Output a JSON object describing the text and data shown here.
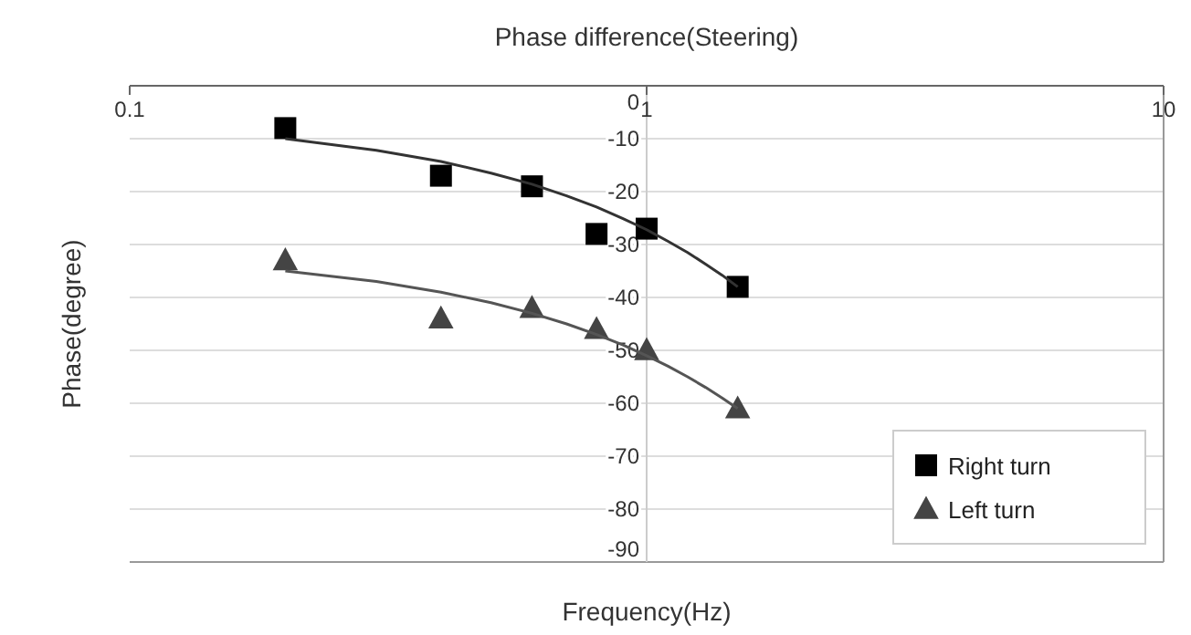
{
  "chart_data": {
    "type": "scatter",
    "title": "Phase difference(Steering)",
    "xlabel": "Frequency(Hz)",
    "ylabel": "Phase(degree)",
    "log": "x",
    "xlim": [
      0.1,
      10
    ],
    "xticks": [
      0.1,
      1,
      10
    ],
    "ylim": [
      -90,
      0
    ],
    "yticks": [
      0,
      -10,
      -20,
      -30,
      -40,
      -50,
      -60,
      -70,
      -80,
      -90
    ],
    "grid": "y",
    "legend": "bottom right",
    "series": [
      {
        "name": "Right turn",
        "color": "#000000",
        "marker": "square",
        "x": [
          0.2,
          0.4,
          0.6,
          0.8,
          1.0,
          1.5
        ],
        "values": [
          -8,
          -17,
          -19,
          -28,
          -27,
          -38
        ]
      },
      {
        "name": "Left turn",
        "color": "#444444",
        "marker": "triangle",
        "x": [
          0.2,
          0.4,
          0.6,
          0.8,
          1.0,
          1.5
        ],
        "values": [
          -33,
          -44,
          -42,
          -46,
          -50,
          -61
        ]
      },
      {
        "type": "line",
        "color": "#333333",
        "marker": "none",
        "x": [
          0.2,
          0.3,
          0.4,
          0.5,
          0.6,
          0.7,
          0.8,
          0.9,
          1.0,
          1.1,
          1.2,
          1.3,
          1.4,
          1.5
        ],
        "values": [
          -10,
          -12.2,
          -14.3,
          -16.5,
          -18.6,
          -20.8,
          -22.9,
          -25.1,
          -27.2,
          -29.4,
          -31.5,
          -33.7,
          -35.8,
          -38
        ]
      },
      {
        "type": "line",
        "color": "#555555",
        "marker": "none",
        "x": [
          0.2,
          0.3,
          0.4,
          0.5,
          0.6,
          0.7,
          0.8,
          0.9,
          1.0,
          1.1,
          1.2,
          1.3,
          1.4,
          1.5
        ],
        "values": [
          -35,
          -37,
          -39,
          -41,
          -43,
          -45,
          -47,
          -49,
          -51,
          -53,
          -55,
          -57,
          -59,
          -61
        ]
      }
    ]
  }
}
